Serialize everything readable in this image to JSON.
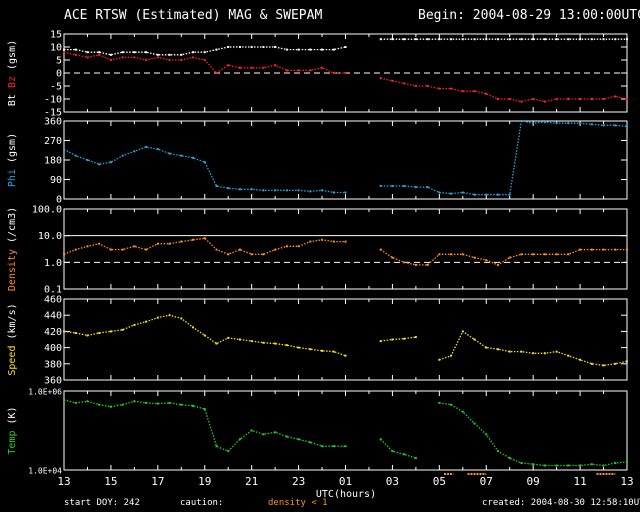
{
  "header": {
    "title": "ACE RTSW (Estimated) MAG & SWEPAM",
    "begin": "Begin: 2004-08-29 13:00:00UTC"
  },
  "footer": {
    "start_doy": "start DOY: 242",
    "caution_label": "caution:",
    "density_note": "density < 1",
    "created": "created: 2004-08-30 12:58:10UTC"
  },
  "colors": {
    "bt": "#ffffff",
    "bz": "#ff2020",
    "phi": "#22a8e0",
    "density": "#ff9020",
    "speed": "#f0e020",
    "temp": "#22cc22",
    "frame": "#ffffff",
    "background": "#000000"
  },
  "chart_data": {
    "type": "scatter",
    "title": "ACE RTSW (Estimated) MAG & SWEPAM",
    "xlabel": "UTC(hours)",
    "x_ticks": [
      "13",
      "15",
      "17",
      "19",
      "21",
      "23",
      "01",
      "03",
      "05",
      "07",
      "09",
      "11",
      "13"
    ],
    "x_range_hours": [
      0,
      24
    ],
    "panels": [
      {
        "id": "mag",
        "ylabel": [
          "Bt",
          "Bz",
          "(gsm)"
        ],
        "ylim": [
          -15,
          15
        ],
        "y_ticks": [
          "15",
          "10",
          "5",
          "0",
          "-5",
          "-10",
          "-15"
        ],
        "zero_line": 0,
        "series": [
          {
            "name": "Bt",
            "color": "#ffffff",
            "x": [
              0,
              0.5,
              1,
              1.5,
              2,
              2.5,
              3,
              3.5,
              4,
              4.5,
              5,
              5.5,
              6,
              6.5,
              7,
              7.5,
              8,
              8.5,
              9,
              9.5,
              10,
              10.5,
              11,
              11.5,
              12,
              12.5,
              13,
              13.5,
              14,
              14.5,
              15,
              15.5,
              16,
              16.5,
              17,
              17.5,
              18,
              18.5,
              19,
              19.5,
              20,
              20.5,
              21,
              21.5,
              22,
              22.5,
              23,
              23.5,
              24
            ],
            "y": [
              9,
              9,
              8,
              8,
              7,
              8,
              8,
              8,
              7,
              7,
              7,
              8,
              8,
              9,
              10,
              10,
              10,
              10,
              10,
              9,
              9,
              9,
              9,
              9,
              10,
              null,
              null,
              13,
              13,
              13,
              13,
              13,
              13,
              13,
              13,
              13,
              13,
              13,
              13,
              13,
              13,
              13,
              13,
              13,
              13,
              13,
              13,
              13,
              13
            ]
          },
          {
            "name": "Bz",
            "color": "#ff2020",
            "x": [
              0,
              0.5,
              1,
              1.5,
              2,
              2.5,
              3,
              3.5,
              4,
              4.5,
              5,
              5.5,
              6,
              6.5,
              7,
              7.5,
              8,
              8.5,
              9,
              9.5,
              10,
              10.5,
              11,
              11.5,
              12,
              12.5,
              13,
              13.5,
              14,
              14.5,
              15,
              15.5,
              16,
              16.5,
              17,
              17.5,
              18,
              18.5,
              19,
              19.5,
              20,
              20.5,
              21,
              21.5,
              22,
              22.5,
              23,
              23.5,
              24
            ],
            "y": [
              8,
              7,
              6,
              7,
              5,
              6,
              6,
              5,
              6,
              5,
              5,
              6,
              5,
              0,
              3,
              2,
              2,
              2,
              3,
              1,
              1,
              1,
              2,
              0,
              0,
              null,
              null,
              -2,
              -3,
              -4,
              -5,
              -5,
              -6,
              -6,
              -7,
              -7,
              -8,
              -10,
              -10,
              -11,
              -10,
              -11,
              -10,
              -10,
              -10,
              -10,
              -10,
              -9,
              -10
            ]
          }
        ]
      },
      {
        "id": "phi",
        "ylabel": [
          "Phi",
          "(gsm)"
        ],
        "ylim": [
          0,
          360
        ],
        "y_ticks": [
          "360",
          "270",
          "180",
          "90",
          "0"
        ],
        "series": [
          {
            "name": "Phi",
            "color": "#22a8e0",
            "x": [
              0,
              0.5,
              1,
              1.5,
              2,
              2.5,
              3,
              3.5,
              4,
              4.5,
              5,
              5.5,
              6,
              6.5,
              7,
              7.5,
              8,
              8.5,
              9,
              9.5,
              10,
              10.5,
              11,
              11.5,
              12,
              12.5,
              13,
              13.5,
              14,
              14.5,
              15,
              15.5,
              16,
              16.5,
              17,
              17.5,
              18,
              18.5,
              19,
              19.5,
              20,
              20.5,
              21,
              21.5,
              22,
              22.5,
              23,
              23.5,
              24
            ],
            "y": [
              230,
              200,
              180,
              160,
              170,
              200,
              220,
              240,
              230,
              210,
              200,
              190,
              170,
              60,
              50,
              45,
              45,
              40,
              40,
              40,
              40,
              35,
              40,
              30,
              30,
              null,
              null,
              60,
              60,
              60,
              55,
              55,
              30,
              25,
              30,
              20,
              20,
              20,
              20,
              360,
              350,
              355,
              350,
              350,
              350,
              345,
              340,
              340,
              335
            ]
          }
        ]
      },
      {
        "id": "density",
        "ylabel": [
          "Density",
          "(/cm3)"
        ],
        "yscale": "log",
        "ylim": [
          0.1,
          100
        ],
        "y_ticks": [
          "100.0",
          "10.0",
          "1.0",
          "0.1"
        ],
        "reference_lines": [
          1.0,
          10.0
        ],
        "series": [
          {
            "name": "Density",
            "color": "#ff9020",
            "x": [
              0,
              0.5,
              1,
              1.5,
              2,
              2.5,
              3,
              3.5,
              4,
              4.5,
              5,
              5.5,
              6,
              6.5,
              7,
              7.5,
              8,
              8.5,
              9,
              9.5,
              10,
              10.5,
              11,
              11.5,
              12,
              12.5,
              13,
              13.5,
              14,
              14.5,
              15,
              15.5,
              16,
              16.5,
              17,
              17.5,
              18,
              18.5,
              19,
              19.5,
              20,
              20.5,
              21,
              21.5,
              22,
              22.5,
              23,
              23.5,
              24
            ],
            "y": [
              2,
              3,
              4,
              5,
              3,
              3,
              4,
              3,
              5,
              5,
              6,
              7,
              8,
              3,
              2,
              3,
              2,
              2,
              3,
              4,
              4,
              6,
              7,
              6,
              6,
              null,
              null,
              3,
              1.5,
              1,
              0.8,
              0.8,
              2,
              2,
              2,
              1.5,
              1.2,
              0.8,
              1.5,
              2,
              2,
              2,
              2,
              2,
              3,
              3,
              3,
              3,
              3
            ]
          }
        ]
      },
      {
        "id": "speed",
        "ylabel": [
          "Speed",
          "(km/s)"
        ],
        "ylim": [
          360,
          460
        ],
        "y_ticks": [
          "460",
          "440",
          "420",
          "400",
          "380",
          "360"
        ],
        "series": [
          {
            "name": "Speed",
            "color": "#f0e020",
            "x": [
              0,
              0.5,
              1,
              1.5,
              2,
              2.5,
              3,
              3.5,
              4,
              4.5,
              5,
              5.5,
              6,
              6.5,
              7,
              7.5,
              8,
              8.5,
              9,
              9.5,
              10,
              10.5,
              11,
              11.5,
              12,
              12.5,
              13,
              13.5,
              14,
              14.5,
              15,
              15.5,
              16,
              16.5,
              17,
              17.5,
              18,
              18.5,
              19,
              19.5,
              20,
              20.5,
              21,
              21.5,
              22,
              22.5,
              23,
              23.5,
              24
            ],
            "y": [
              420,
              418,
              415,
              418,
              420,
              422,
              428,
              432,
              437,
              440,
              436,
              425,
              415,
              405,
              412,
              410,
              408,
              406,
              405,
              403,
              400,
              398,
              396,
              395,
              390,
              null,
              null,
              408,
              410,
              411,
              413,
              null,
              385,
              390,
              420,
              410,
              400,
              398,
              395,
              395,
              393,
              393,
              395,
              390,
              385,
              380,
              378,
              380,
              383
            ]
          }
        ]
      },
      {
        "id": "temp",
        "ylabel": [
          "Temp",
          "(K)"
        ],
        "yscale": "log",
        "ylim": [
          10000,
          1000000
        ],
        "y_ticks": [
          "1.0E+06",
          "1.0E+04"
        ],
        "series": [
          {
            "name": "Temp",
            "color": "#22cc22",
            "x": [
              0,
              0.5,
              1,
              1.5,
              2,
              2.5,
              3,
              3.5,
              4,
              4.5,
              5,
              5.5,
              6,
              6.5,
              7,
              7.5,
              8,
              8.5,
              9,
              9.5,
              10,
              10.5,
              11,
              11.5,
              12,
              12.5,
              13,
              13.5,
              14,
              14.5,
              15,
              15.5,
              16,
              16.5,
              17,
              17.5,
              18,
              18.5,
              19,
              19.5,
              20,
              20.5,
              21,
              21.5,
              22,
              22.5,
              23,
              23.5,
              24
            ],
            "y": [
              600000,
              500000,
              550000,
              450000,
              400000,
              450000,
              550000,
              500000,
              480000,
              500000,
              450000,
              420000,
              350000,
              40000,
              30000,
              60000,
              100000,
              80000,
              90000,
              70000,
              60000,
              50000,
              40000,
              40000,
              40000,
              null,
              null,
              60000,
              30000,
              25000,
              20000,
              null,
              500000,
              450000,
              300000,
              150000,
              80000,
              30000,
              20000,
              15000,
              14000,
              13000,
              13000,
              13000,
              13000,
              14000,
              13000,
              15000,
              16000
            ]
          }
        ]
      }
    ]
  }
}
